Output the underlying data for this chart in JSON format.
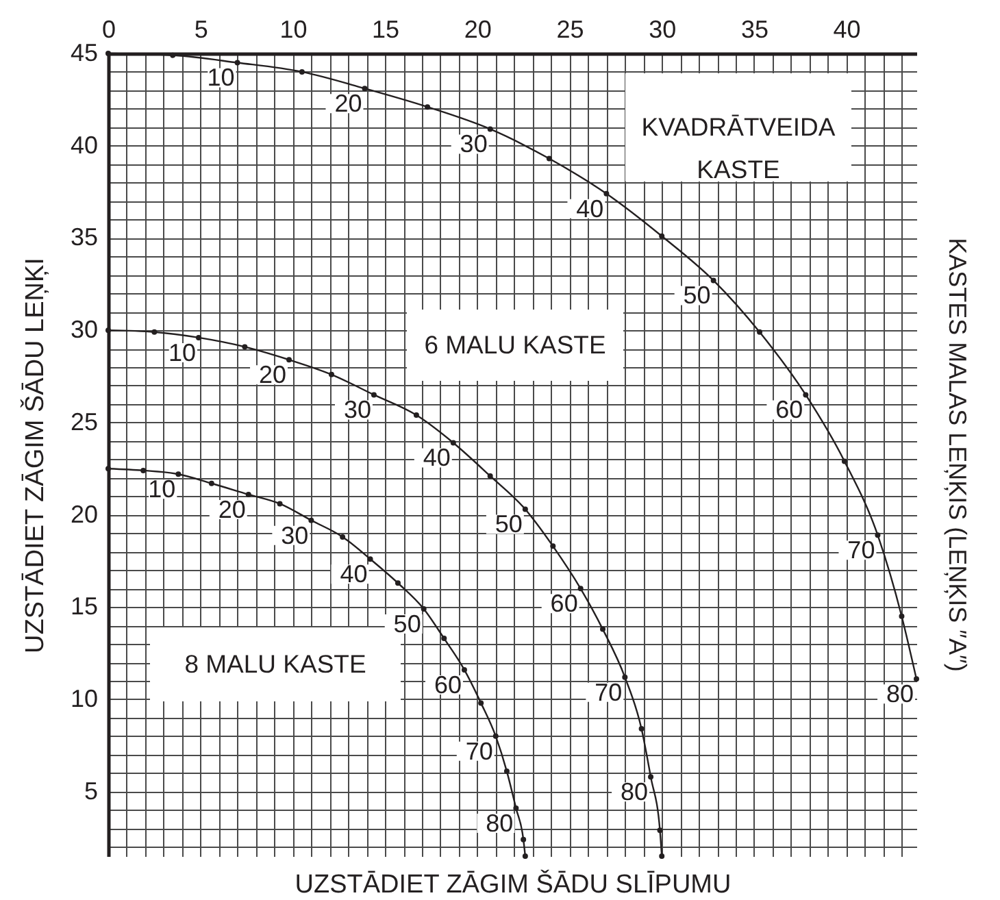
{
  "chart_data": {
    "type": "line",
    "xlabel": "UZSTĀDIET ZĀGIM ŠĀDU SLĪPUMU",
    "ylabel": "UZSTĀDIET ZĀGIM ŠĀDU LEŅĶI",
    "xlim": [
      0,
      43.8
    ],
    "ylim": [
      1.5,
      45
    ],
    "xticks": [
      0,
      {
        "value": 1,
        "label": null
      },
      {
        "value": 2,
        "label": null
      },
      {
        "value": 3,
        "label": null
      },
      {
        "value": 4,
        "label": null
      },
      5,
      {
        "value": 6,
        "label": null
      },
      {
        "value": 7,
        "label": null
      },
      {
        "value": 8,
        "label": null
      },
      {
        "value": 9,
        "label": null
      },
      10,
      {
        "value": 11,
        "label": null
      },
      {
        "value": 12,
        "label": null
      },
      {
        "value": 13,
        "label": null
      },
      {
        "value": 14,
        "label": null
      },
      15,
      {
        "value": 16,
        "label": null
      },
      {
        "value": 17,
        "label": null
      },
      {
        "value": 18,
        "label": null
      },
      {
        "value": 19,
        "label": null
      },
      20,
      {
        "value": 21,
        "label": null
      },
      {
        "value": 22,
        "label": null
      },
      {
        "value": 23,
        "label": null
      },
      {
        "value": 24,
        "label": null
      },
      25,
      {
        "value": 26,
        "label": null
      },
      {
        "value": 27,
        "label": null
      },
      {
        "value": 28,
        "label": null
      },
      {
        "value": 29,
        "label": null
      },
      30,
      {
        "value": 31,
        "label": null
      },
      {
        "value": 32,
        "label": null
      },
      {
        "value": 33,
        "label": null
      },
      {
        "value": 34,
        "label": null
      },
      35,
      {
        "value": 36,
        "label": null
      },
      {
        "value": 37,
        "label": null
      },
      {
        "value": 38,
        "label": null
      },
      {
        "value": 39,
        "label": null
      },
      40,
      {
        "value": 41,
        "label": null
      },
      {
        "value": 42,
        "label": null
      },
      {
        "value": 43,
        "label": null
      }
    ],
    "yticks": [
      {
        "value": 2,
        "label": null
      },
      {
        "value": 3,
        "label": null
      },
      {
        "value": 4,
        "label": null
      },
      5,
      {
        "value": 6,
        "label": null
      },
      {
        "value": 7,
        "label": null
      },
      {
        "value": 8,
        "label": null
      },
      {
        "value": 9,
        "label": null
      },
      10,
      {
        "value": 11,
        "label": null
      },
      {
        "value": 12,
        "label": null
      },
      {
        "value": 13,
        "label": null
      },
      {
        "value": 14,
        "label": null
      },
      15,
      {
        "value": 16,
        "label": null
      },
      {
        "value": 17,
        "label": null
      },
      {
        "value": 18,
        "label": null
      },
      {
        "value": 19,
        "label": null
      },
      20,
      {
        "value": 21,
        "label": null
      },
      {
        "value": 22,
        "label": null
      },
      {
        "value": 23,
        "label": null
      },
      {
        "value": 24,
        "label": null
      },
      25,
      {
        "value": 26,
        "label": null
      },
      {
        "value": 27,
        "label": null
      },
      {
        "value": 28,
        "label": null
      },
      {
        "value": 29,
        "label": null
      },
      30,
      {
        "value": 31,
        "label": null
      },
      {
        "value": 32,
        "label": null
      },
      {
        "value": 33,
        "label": null
      },
      {
        "value": 34,
        "label": null
      },
      35,
      {
        "value": 36,
        "label": null
      },
      {
        "value": 37,
        "label": null
      },
      {
        "value": 38,
        "label": null
      },
      {
        "value": 39,
        "label": null
      },
      40,
      {
        "value": 41,
        "label": null
      },
      {
        "value": 42,
        "label": null
      },
      {
        "value": 43,
        "label": null
      },
      {
        "value": 44,
        "label": null
      },
      45
    ],
    "grid": true,
    "marker": "circle",
    "line_style": "solid",
    "series": [
      {
        "name": "KVADRĀTVEIDA KASTE",
        "color": "#231f20",
        "x": [
          0,
          3.5,
          7.0,
          10.5,
          13.9,
          17.3,
          20.7,
          23.9,
          27.0,
          30.0,
          32.8,
          35.3,
          37.8,
          39.9,
          41.7,
          43.0,
          43.8
        ],
        "values": [
          45,
          44.9,
          44.5,
          44.0,
          43.1,
          42.1,
          40.9,
          39.3,
          37.4,
          35.1,
          32.7,
          29.9,
          26.5,
          22.9,
          18.9,
          14.5,
          11.1
        ]
      },
      {
        "name": "6 MALU KASTE",
        "color": "#231f20",
        "x": [
          0,
          2.5,
          4.9,
          7.4,
          9.8,
          12.1,
          14.4,
          16.7,
          18.7,
          20.7,
          22.6,
          24.1,
          25.6,
          26.8,
          28.0,
          28.9,
          29.4,
          29.9,
          30.0
        ],
        "values": [
          30,
          29.9,
          29.6,
          29.1,
          28.4,
          27.6,
          26.5,
          25.4,
          23.9,
          22.1,
          20.3,
          18.3,
          16.0,
          13.8,
          11.2,
          8.4,
          5.8,
          2.9,
          1.5
        ]
      },
      {
        "name": "8 MALU KASTE",
        "color": "#231f20",
        "x": [
          0,
          1.9,
          3.8,
          5.6,
          7.6,
          9.3,
          11.0,
          12.7,
          14.2,
          15.7,
          17.1,
          18.2,
          19.3,
          20.2,
          21.0,
          21.6,
          22.1,
          22.5,
          22.6
        ],
        "values": [
          22.5,
          22.4,
          22.2,
          21.7,
          21.1,
          20.6,
          19.7,
          18.8,
          17.6,
          16.3,
          14.9,
          13.3,
          11.6,
          9.8,
          8.0,
          6.1,
          4.1,
          2.4,
          1.5
        ]
      }
    ],
    "annotations": [
      "KASTES MALAS LEŅĶIS (LEŅĶIS ″A″)",
      {
        "text": "10",
        "x": 7.0,
        "y": 44.5
      },
      {
        "text": "20",
        "x": 13.9,
        "y": 43.1
      },
      {
        "text": "30",
        "x": 20.7,
        "y": 40.9
      },
      {
        "text": "40",
        "x": 27.0,
        "y": 37.4
      },
      {
        "text": "50",
        "x": 32.8,
        "y": 32.7
      },
      {
        "text": "60",
        "x": 37.8,
        "y": 26.5
      },
      {
        "text": "70",
        "x": 41.7,
        "y": 18.9
      },
      {
        "text": "80",
        "x": 43.8,
        "y": 11.1
      },
      {
        "text": "10",
        "x": 4.9,
        "y": 29.6
      },
      {
        "text": "20",
        "x": 9.8,
        "y": 28.4
      },
      {
        "text": "30",
        "x": 14.4,
        "y": 26.5
      },
      {
        "text": "40",
        "x": 18.7,
        "y": 23.9
      },
      {
        "text": "50",
        "x": 22.6,
        "y": 20.3
      },
      {
        "text": "60",
        "x": 25.6,
        "y": 16.0
      },
      {
        "text": "70",
        "x": 28.0,
        "y": 11.2
      },
      {
        "text": "80",
        "x": 29.4,
        "y": 5.8
      },
      {
        "text": "10",
        "x": 3.8,
        "y": 22.2
      },
      {
        "text": "20",
        "x": 7.6,
        "y": 21.1
      },
      {
        "text": "30",
        "x": 11.0,
        "y": 19.7
      },
      {
        "text": "40",
        "x": 14.2,
        "y": 17.6
      },
      {
        "text": "50",
        "x": 17.1,
        "y": 14.9
      },
      {
        "text": "60",
        "x": 19.3,
        "y": 11.6
      },
      {
        "text": "70",
        "x": 21.0,
        "y": 8.0
      },
      {
        "text": "80",
        "x": 22.1,
        "y": 4.1
      }
    ]
  }
}
